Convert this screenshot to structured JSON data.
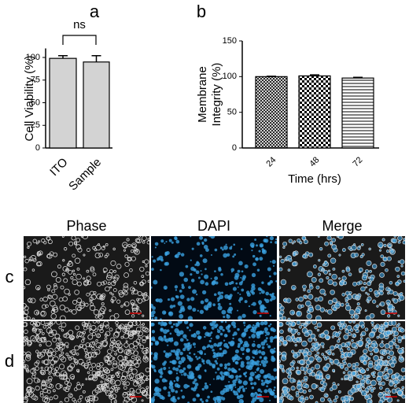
{
  "chart_data": [
    {
      "type": "bar",
      "title": "a",
      "ylabel": "Cell Viability (%)",
      "categories": [
        "ITO",
        "Sample"
      ],
      "values": [
        99,
        95
      ],
      "errors": [
        3,
        7
      ],
      "color": "#d3d3d3",
      "ylim": [
        0,
        110
      ],
      "yticks": [
        0,
        25,
        50,
        75,
        100
      ],
      "annotation": "ns"
    },
    {
      "type": "bar",
      "title": "b",
      "ylabel_lines": [
        "Membrane",
        "Integrity (%)"
      ],
      "xlabel": "Time (hrs)",
      "categories": [
        "24",
        "48",
        "72"
      ],
      "values": [
        100,
        101,
        98
      ],
      "errors": [
        0.5,
        1.5,
        1
      ],
      "patterns": [
        "crosshatch",
        "checker",
        "hlines"
      ],
      "ylim": [
        0,
        150
      ],
      "yticks": [
        0,
        50,
        100,
        150
      ]
    }
  ],
  "figure": {
    "columns": [
      "Phase",
      "DAPI",
      "Merge"
    ],
    "rows": [
      "c",
      "d"
    ]
  }
}
